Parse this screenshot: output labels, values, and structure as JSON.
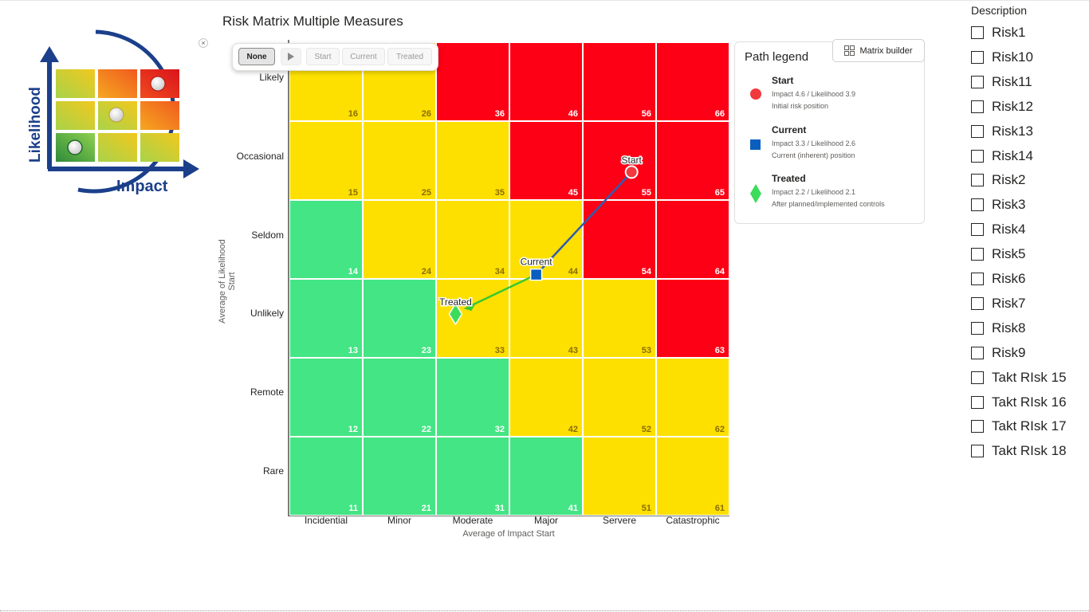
{
  "chart_title": "Risk Matrix Multiple Measures",
  "toolbar": {
    "buttons": [
      "None",
      "Start",
      "Current",
      "Treated"
    ],
    "active": "None",
    "close_label": "×"
  },
  "logo": {
    "likelihood_label": "Likelihood",
    "impact_label": "Impact"
  },
  "chart_data": {
    "type": "heatmap",
    "xlabel": "Average of Impact Start",
    "ylabel": "Average of Likelihood Start",
    "x_categories": [
      "Incidential",
      "Minor",
      "Moderate",
      "Major",
      "Servere",
      "Catastrophic"
    ],
    "y_categories": [
      "Rare",
      "Remote",
      "Unlikely",
      "Seldom",
      "Occasional",
      "Likely"
    ],
    "cells": [
      [
        11,
        21,
        31,
        41,
        51,
        61
      ],
      [
        12,
        22,
        32,
        42,
        52,
        62
      ],
      [
        13,
        23,
        33,
        43,
        53,
        63
      ],
      [
        14,
        24,
        34,
        44,
        54,
        64
      ],
      [
        15,
        25,
        35,
        45,
        55,
        65
      ],
      [
        16,
        26,
        36,
        46,
        56,
        66
      ]
    ],
    "cell_levels": [
      [
        "green",
        "green",
        "green",
        "green",
        "yellow",
        "yellow"
      ],
      [
        "green",
        "green",
        "green",
        "yellow",
        "yellow",
        "yellow"
      ],
      [
        "green",
        "green",
        "yellow",
        "yellow",
        "yellow",
        "red"
      ],
      [
        "green",
        "yellow",
        "yellow",
        "yellow",
        "red",
        "red"
      ],
      [
        "yellow",
        "yellow",
        "yellow",
        "red",
        "red",
        "red"
      ],
      [
        "yellow",
        "yellow",
        "red",
        "red",
        "red",
        "red"
      ]
    ],
    "level_colors": {
      "green": "#44e584",
      "yellow": "#fde000",
      "red": "#fd0015"
    },
    "points": [
      {
        "name": "Start",
        "impact": 4.6,
        "likelihood": 3.9,
        "shape": "circle",
        "color": "#f03a3e"
      },
      {
        "name": "Current",
        "impact": 3.3,
        "likelihood": 2.6,
        "shape": "square",
        "color": "#0a5fbe"
      },
      {
        "name": "Treated",
        "impact": 2.2,
        "likelihood": 2.1,
        "shape": "diamond",
        "color": "#3cdc5a"
      }
    ],
    "path_colors": {
      "start_to_current": "#2f5db0",
      "current_to_treated": "#38c830"
    }
  },
  "legend": {
    "title": "Path legend",
    "matrix_builder_label": "Matrix builder",
    "items": [
      {
        "name": "Start",
        "detail": "Impact 4.6 / Likelihood 3.9",
        "desc": "Initial risk position"
      },
      {
        "name": "Current",
        "detail": "Impact 3.3 / Likelihood 2.6",
        "desc": "Current (inherent) position"
      },
      {
        "name": "Treated",
        "detail": "Impact 2.2 / Likelihood 2.1",
        "desc": "After planned/implemented controls"
      }
    ]
  },
  "slicer": {
    "title": "Description",
    "items": [
      "Risk1",
      "Risk10",
      "Risk11",
      "Risk12",
      "Risk13",
      "Risk14",
      "Risk2",
      "Risk3",
      "Risk4",
      "Risk5",
      "Risk6",
      "Risk7",
      "Risk8",
      "Risk9",
      "Takt RIsk 15",
      "Takt RIsk 16",
      "Takt RIsk 17",
      "Takt RIsk 18"
    ]
  }
}
